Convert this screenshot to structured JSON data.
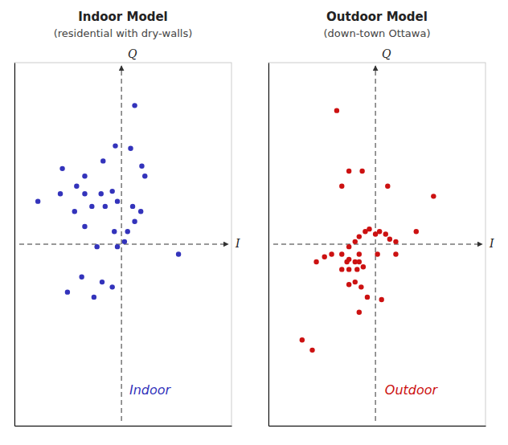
{
  "chart_data": [
    {
      "type": "scatter",
      "title": "Indoor Model",
      "subtitle": "(residential with dry-walls)",
      "xlabel": "I",
      "ylabel": "Q",
      "annotations": [
        {
          "text": "Indoor",
          "x": 0.28,
          "y": -0.58
        }
      ],
      "color": "#3333bb",
      "x": [
        -0.82,
        -0.58,
        -0.44,
        -0.36,
        -0.18,
        -0.06,
        0.09,
        0.2,
        0.23,
        -0.6,
        -0.36,
        -0.2,
        -0.09,
        -0.46,
        -0.29,
        -0.16,
        -0.04,
        0.11,
        0.19,
        -0.36,
        -0.07,
        0.06,
        0.13,
        -0.24,
        -0.04,
        0.03,
        -0.39,
        -0.19,
        -0.09,
        -0.53,
        -0.27,
        0.56,
        0.13
      ],
      "values": [
        0.17,
        0.3,
        0.23,
        0.27,
        0.33,
        0.39,
        0.38,
        0.31,
        0.27,
        0.2,
        0.2,
        0.2,
        0.21,
        0.13,
        0.15,
        0.15,
        0.17,
        0.15,
        0.13,
        0.07,
        0.05,
        0.05,
        0.09,
        -0.01,
        -0.01,
        0.01,
        -0.13,
        -0.15,
        -0.17,
        -0.19,
        -0.21,
        -0.04,
        0.55
      ],
      "xlim": [
        -1.05,
        1.08
      ],
      "ylim": [
        -0.72,
        0.72
      ],
      "tick_labels": false,
      "grid": false
    },
    {
      "type": "scatter",
      "title": "Outdoor Model",
      "subtitle": "(down-town Ottawa)",
      "xlabel": "I",
      "ylabel": "Q",
      "annotations": [
        {
          "text": "Outdoor",
          "x": 0.35,
          "y": -0.58
        }
      ],
      "color": "#cc1111",
      "x": [
        -0.72,
        -0.62,
        -0.58,
        -0.5,
        -0.43,
        -0.33,
        -0.26,
        -0.2,
        -0.16,
        -0.1,
        -0.06,
        0.0,
        0.04,
        0.1,
        0.14,
        0.2,
        -0.28,
        -0.2,
        -0.16,
        -0.12,
        0.02,
        0.2,
        -0.33,
        -0.26,
        -0.18,
        -0.26,
        -0.2,
        -0.14,
        -0.08,
        0.06,
        -0.16,
        -0.26,
        -0.13,
        -0.33,
        0.12,
        0.57,
        0.4,
        -0.38,
        -0.26,
        -0.16
      ],
      "values": [
        -0.38,
        -0.42,
        -0.07,
        -0.05,
        -0.04,
        -0.04,
        -0.01,
        0.01,
        0.03,
        0.05,
        0.06,
        0.04,
        0.05,
        0.04,
        0.02,
        0.01,
        -0.07,
        -0.07,
        -0.07,
        -0.09,
        -0.04,
        -0.04,
        -0.1,
        -0.1,
        -0.1,
        -0.16,
        -0.15,
        -0.17,
        -0.21,
        -0.22,
        -0.27,
        0.29,
        0.29,
        0.23,
        0.23,
        0.19,
        0.05,
        0.53,
        -0.06,
        -0.04
      ],
      "xlim": [
        -1.05,
        1.08
      ],
      "ylim": [
        -0.72,
        0.72
      ],
      "tick_labels": false,
      "grid": false
    }
  ]
}
